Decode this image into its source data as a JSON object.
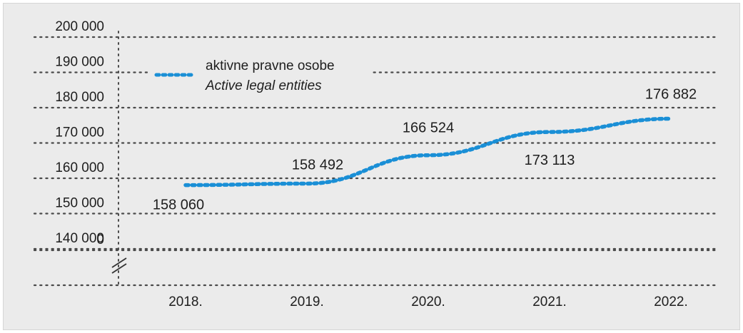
{
  "chart_data": {
    "type": "line",
    "categories": [
      "2018.",
      "2019.",
      "2020.",
      "2021.",
      "2022."
    ],
    "series": [
      {
        "name": "aktivne pravne osobe",
        "name_en": "Active legal entities",
        "values": [
          158060,
          158492,
          166524,
          173113,
          176882
        ],
        "labels": [
          "158 060",
          "158 492",
          "166 524",
          "173 113",
          "176 882"
        ]
      }
    ],
    "y_ticks": [
      {
        "value": 200000,
        "label": "200 000"
      },
      {
        "value": 190000,
        "label": "190 000"
      },
      {
        "value": 180000,
        "label": "180 000"
      },
      {
        "value": 170000,
        "label": "170 000"
      },
      {
        "value": 160000,
        "label": "160 000"
      },
      {
        "value": 150000,
        "label": "150 000"
      },
      {
        "value": 140000,
        "label": "140 000"
      },
      {
        "value": 0,
        "label": "0"
      }
    ],
    "ylim": [
      140000,
      200000
    ],
    "y_axis_break": true,
    "grid": true,
    "legend_position": "top-left",
    "series_color": "#1a8fd6",
    "grid_color": "#4a4a4a",
    "title": "",
    "xlabel": "",
    "ylabel": ""
  }
}
